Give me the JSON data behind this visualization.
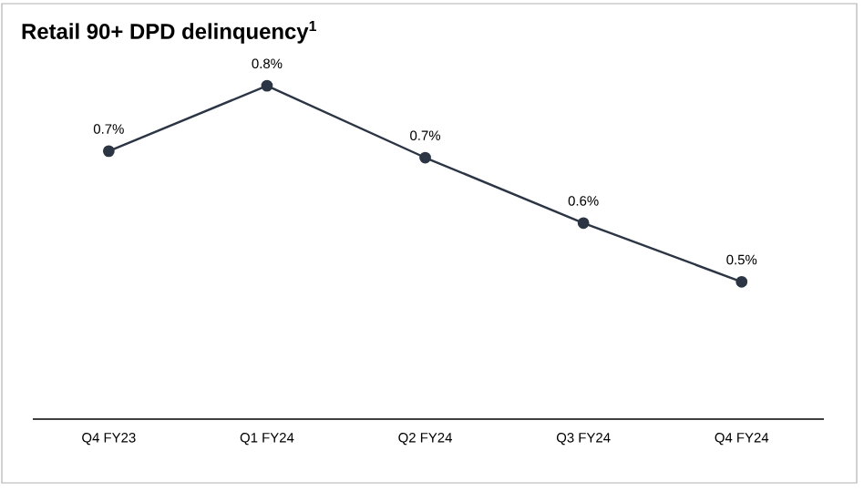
{
  "chart_data": {
    "type": "line",
    "title": "Retail 90+ DPD delinquency$^{1}$",
    "categories": [
      "Q4 FY23",
      "Q1 FY24",
      "Q2 FY24",
      "Q3 FY24",
      "Q4 FY24"
    ],
    "series": [
      {
        "color": "#2b3544",
        "values": [
          0.7,
          0.8,
          0.69,
          0.59,
          0.5
        ],
        "value_labels": [
          "0.7%",
          "0.8%",
          "0.7%",
          "0.6%",
          "0.5%"
        ]
      }
    ],
    "tick_labels": "x",
    "marker": "circle",
    "line_style": "solid"
  }
}
